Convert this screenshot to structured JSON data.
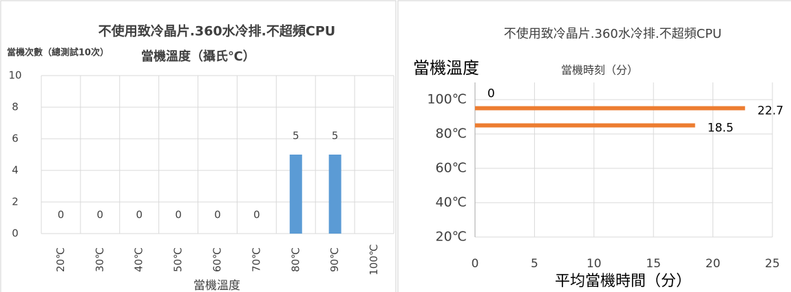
{
  "chart_data": [
    {
      "type": "bar",
      "title": "不使用致冷晶片.360水冷排.不超頻CPU",
      "y_label": "當機次數（總測試10次）",
      "subtitle": "當機溫度（攝氏℃）",
      "x_label": "當機溫度",
      "categories": [
        "20℃",
        "30℃",
        "40℃",
        "50℃",
        "60℃",
        "70℃",
        "80℃",
        "90℃",
        "100℃"
      ],
      "values": [
        0,
        0,
        0,
        0,
        0,
        0,
        5,
        5,
        null
      ],
      "color": "#5b9bd5",
      "ylim": [
        0,
        10
      ],
      "yticks": [
        0,
        2,
        4,
        6,
        8,
        10
      ],
      "grid": true
    },
    {
      "type": "hbar",
      "title": "不使用致冷晶片.360水冷排.不超頻CPU",
      "y_label": "當機溫度",
      "subtitle": "當機時刻（分）",
      "x_label": "平均當機時間（分）",
      "y": [
        105,
        95,
        85
      ],
      "values": [
        0,
        22.7,
        18.5
      ],
      "color": "#ed7d31",
      "ylim": [
        20,
        110
      ],
      "yticks": [
        {
          "value": 20,
          "label": "20℃"
        },
        {
          "value": 40,
          "label": "40℃"
        },
        {
          "value": 60,
          "label": "60℃"
        },
        {
          "value": 80,
          "label": "80℃"
        },
        {
          "value": 100,
          "label": "100℃"
        }
      ],
      "xlim": [
        0,
        25
      ],
      "xticks": [
        0,
        5,
        10,
        15,
        20,
        25
      ],
      "grid": true
    }
  ]
}
